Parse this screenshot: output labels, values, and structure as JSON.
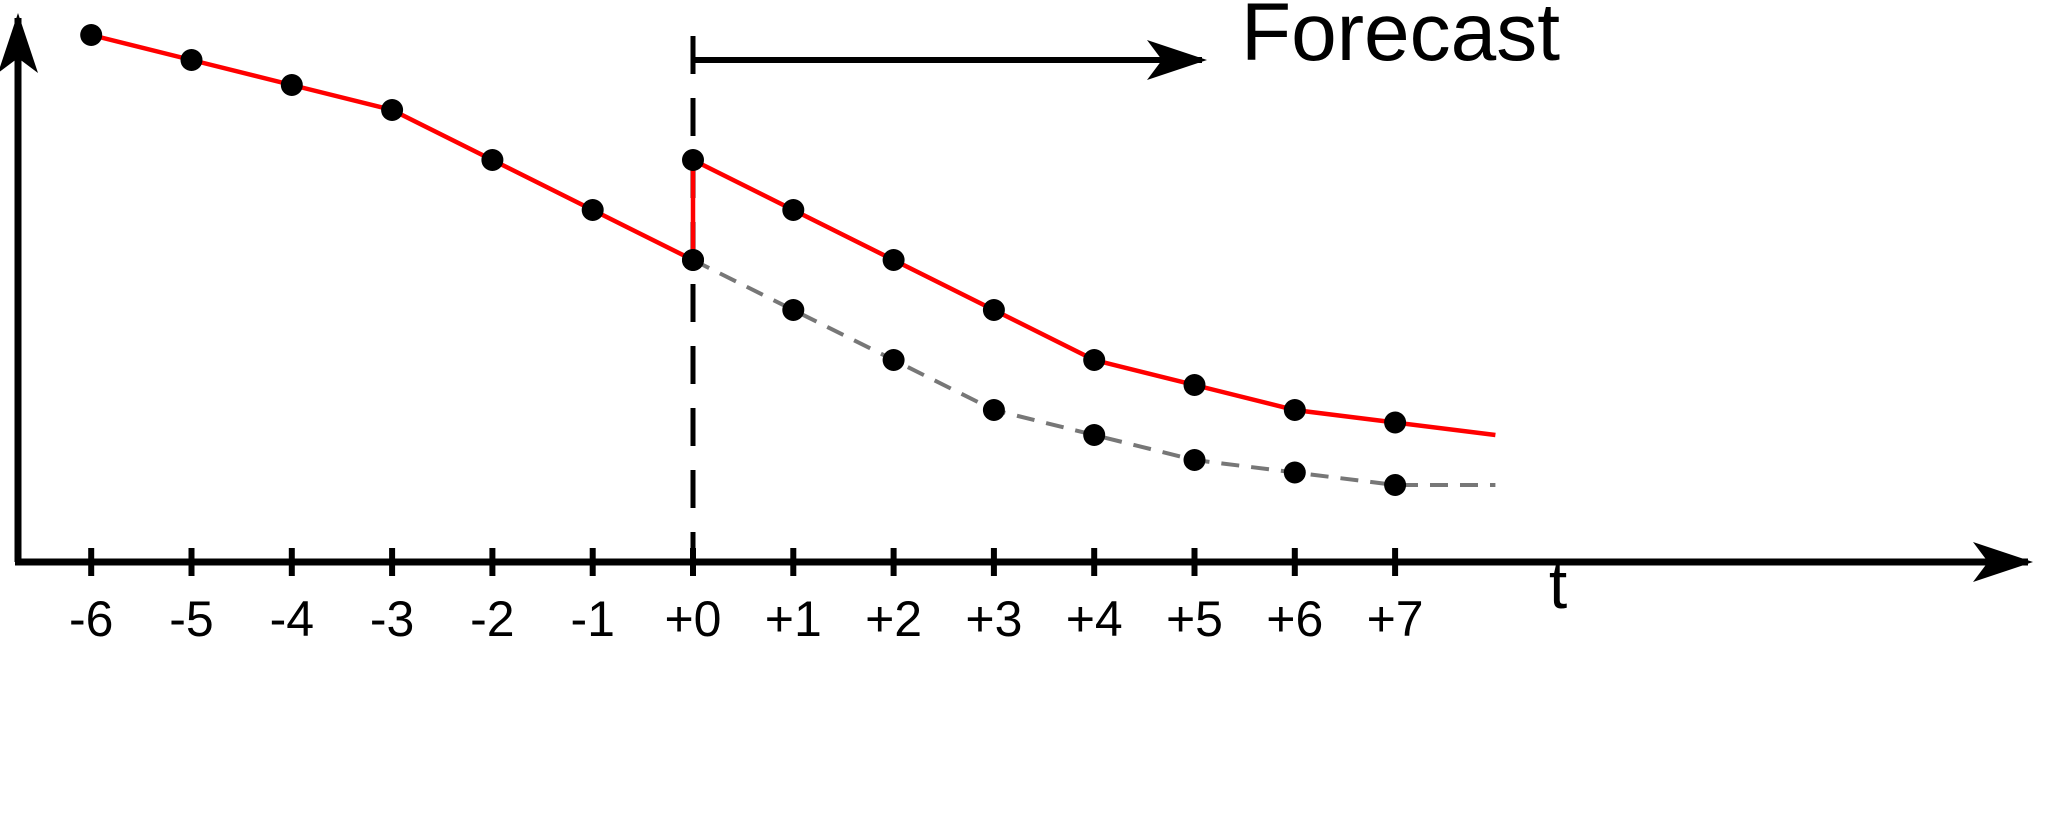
{
  "chart_data": {
    "type": "line",
    "x_axis_label": "t",
    "forecast_label": "Forecast",
    "x": [
      -6,
      -5,
      -4,
      -3,
      -2,
      -1,
      0,
      1,
      2,
      3,
      4,
      5,
      6,
      7
    ],
    "tick_labels": [
      "-6",
      "-5",
      "-4",
      "-3",
      "-2",
      "-1",
      "+0",
      "+1",
      "+2",
      "+3",
      "+4",
      "+5",
      "+6",
      "+7"
    ],
    "y_range": [
      0,
      10.5
    ],
    "forecast_origin_x": 0,
    "series": [
      {
        "style": "solid",
        "color": "#ff0000",
        "points": [
          {
            "x": -6,
            "y": 10.5
          },
          {
            "x": -5,
            "y": 10.0
          },
          {
            "x": -4,
            "y": 9.5
          },
          {
            "x": -3,
            "y": 9.0
          },
          {
            "x": -2,
            "y": 8.0
          },
          {
            "x": -1,
            "y": 7.0
          },
          {
            "x": 0,
            "y": 6.0
          }
        ],
        "tail_end": null
      },
      {
        "style": "solid",
        "color": "#ff0000",
        "points": [
          {
            "x": 0,
            "y": 8.0
          },
          {
            "x": 1,
            "y": 7.0
          },
          {
            "x": 2,
            "y": 6.0
          },
          {
            "x": 3,
            "y": 5.0
          },
          {
            "x": 4,
            "y": 4.0
          },
          {
            "x": 5,
            "y": 3.5
          },
          {
            "x": 6,
            "y": 3.0
          },
          {
            "x": 7,
            "y": 2.75
          }
        ],
        "tail_end": {
          "x": 8,
          "y": 2.5
        }
      },
      {
        "style": "dashed",
        "color": "#777777",
        "points": [
          {
            "x": 0,
            "y": 6.0
          },
          {
            "x": 1,
            "y": 5.0
          },
          {
            "x": 2,
            "y": 4.0
          },
          {
            "x": 3,
            "y": 3.0
          },
          {
            "x": 4,
            "y": 2.5
          },
          {
            "x": 5,
            "y": 2.0
          },
          {
            "x": 6,
            "y": 1.75
          },
          {
            "x": 7,
            "y": 1.5
          }
        ],
        "tail_end": {
          "x": 8,
          "y": 1.5
        }
      }
    ],
    "connector": {
      "x": 0,
      "y_from": 6.0,
      "y_to": 8.0,
      "color": "#ff0000"
    },
    "marker_color": "#000000"
  }
}
